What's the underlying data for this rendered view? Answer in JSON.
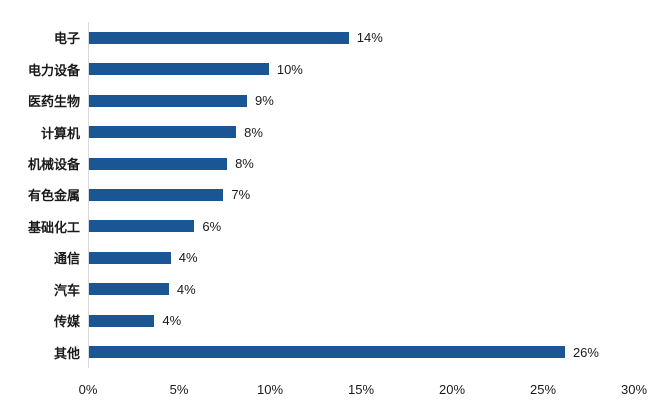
{
  "chart_data": {
    "type": "bar",
    "orientation": "horizontal",
    "title": "",
    "xlabel": "",
    "ylabel": "",
    "categories": [
      "电子",
      "电力设备",
      "医药生物",
      "计算机",
      "机械设备",
      "有色金属",
      "基础化工",
      "通信",
      "汽车",
      "传媒",
      "其他"
    ],
    "values": [
      14,
      10,
      9,
      8,
      8,
      7,
      6,
      4,
      4,
      4,
      26
    ],
    "values_precise": [
      14.3,
      9.9,
      8.7,
      8.1,
      7.6,
      7.4,
      5.8,
      4.5,
      4.4,
      3.6,
      26.2
    ],
    "data_labels": [
      "14%",
      "10%",
      "9%",
      "8%",
      "8%",
      "7%",
      "6%",
      "4%",
      "4%",
      "4%",
      "26%"
    ],
    "x_ticks": [
      "0%",
      "5%",
      "10%",
      "15%",
      "20%",
      "25%",
      "30%"
    ],
    "x_tick_values": [
      0,
      5,
      10,
      15,
      20,
      25,
      30
    ],
    "xlim": [
      0,
      30
    ],
    "grid": false,
    "legend": false,
    "colors": {
      "bar": "#1a5694",
      "axis_line": "#d9d9d9",
      "text": "#1a1a1a",
      "background": "#ffffff"
    }
  }
}
